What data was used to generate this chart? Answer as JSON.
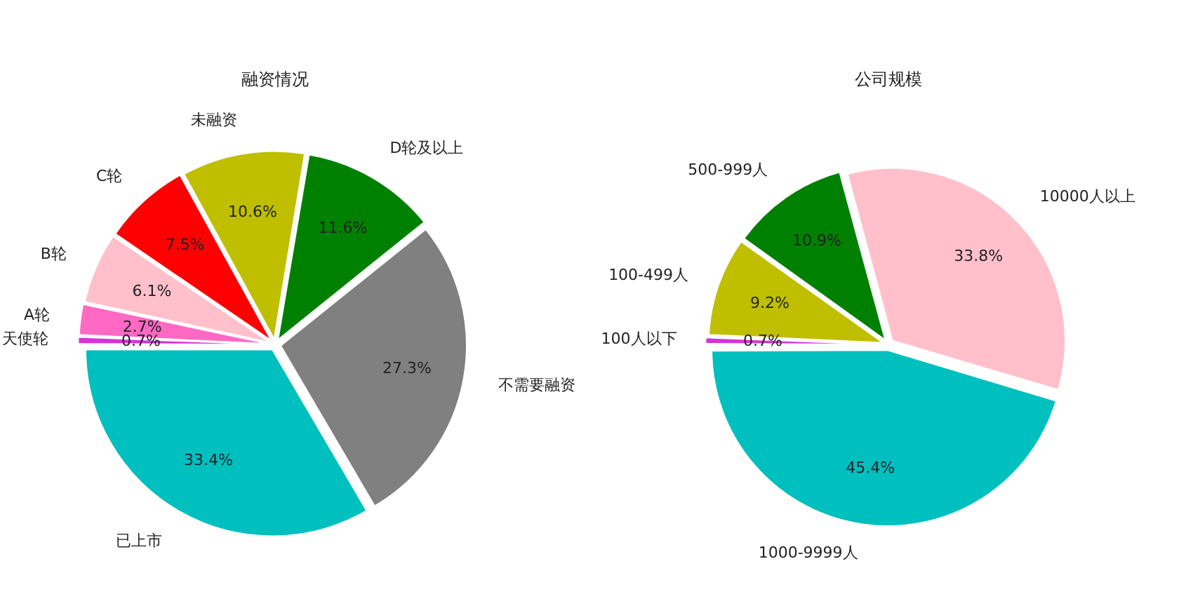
{
  "chart_data": [
    {
      "type": "pie",
      "title": "融资情况",
      "categories": [
        "天使轮",
        "A轮",
        "B轮",
        "C轮",
        "未融资",
        "D轮及以上",
        "不需要融资",
        "已上市"
      ],
      "values": [
        0.7,
        2.7,
        6.1,
        7.5,
        10.6,
        11.6,
        27.3,
        33.4
      ],
      "value_labels": [
        "0.7%",
        "2.7%",
        "6.1%",
        "7.5%",
        "10.6%",
        "11.6%",
        "27.3%",
        "33.4%"
      ],
      "colors": [
        "#d633d6",
        "#ff69c4",
        "#ffc0cb",
        "#ff0000",
        "#bfbf00",
        "#008000",
        "#808080",
        "#00bfbf"
      ],
      "legend": false
    },
    {
      "type": "pie",
      "title": "公司规模",
      "categories": [
        "100人以下",
        "100-499人",
        "500-999人",
        "10000人以上",
        "1000-9999人"
      ],
      "values": [
        0.7,
        9.2,
        10.9,
        33.8,
        45.4
      ],
      "value_labels": [
        "0.7%",
        "9.2%",
        "10.9%",
        "33.8%",
        "45.4%"
      ],
      "colors": [
        "#d633d6",
        "#bfbf00",
        "#008000",
        "#ffc0cb",
        "#00bfbf"
      ],
      "legend": false
    }
  ]
}
